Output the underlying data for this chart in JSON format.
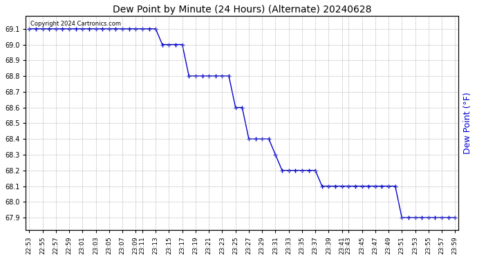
{
  "title": "Dew Point by Minute (24 Hours) (Alternate) 20240628",
  "ylabel": "Dew Point (°F)",
  "copyright_text": "Copyright 2024 Cartronics.com",
  "line_color": "#0000cc",
  "background_color": "#ffffff",
  "grid_color": "#aaaaaa",
  "title_color": "#000000",
  "ylabel_color": "#0000cc",
  "ylim_min": 67.82,
  "ylim_max": 69.18,
  "yticks": [
    67.9,
    68.0,
    68.1,
    68.2,
    68.3,
    68.4,
    68.5,
    68.6,
    68.7,
    68.8,
    68.9,
    69.0,
    69.1
  ],
  "time_labels": [
    "22:53",
    "22:55",
    "22:57",
    "22:59",
    "23:01",
    "23:03",
    "23:05",
    "23:07",
    "23:09",
    "23:11",
    "23:13",
    "23:15",
    "23:17",
    "23:19",
    "23:21",
    "23:23",
    "23:25",
    "23:27",
    "23:29",
    "23:31",
    "23:33",
    "23:35",
    "23:37",
    "23:39",
    "23:41",
    "23:43",
    "23:45",
    "23:47",
    "23:49",
    "23:51",
    "23:53",
    "23:55",
    "23:57",
    "23:59"
  ],
  "data_values": [
    69.1,
    69.1,
    69.1,
    69.1,
    69.1,
    69.1,
    69.1,
    69.1,
    69.1,
    69.1,
    69.1,
    69.1,
    69.1,
    69.1,
    69.1,
    69.1,
    69.1,
    69.1,
    69.1,
    69.1,
    69.0,
    69.0,
    69.0,
    69.0,
    68.8,
    68.8,
    68.8,
    68.8,
    68.8,
    68.8,
    68.8,
    68.6,
    68.6,
    68.4,
    68.4,
    68.4,
    68.4,
    68.3,
    68.2,
    68.2,
    68.2,
    68.2,
    68.2,
    68.2,
    68.1,
    68.1,
    68.1,
    68.1,
    68.1,
    68.1,
    68.1,
    68.1,
    68.1,
    68.1,
    68.1,
    68.1,
    67.9,
    67.9,
    67.9,
    67.9,
    67.9,
    67.9,
    67.9,
    67.9,
    67.9
  ]
}
